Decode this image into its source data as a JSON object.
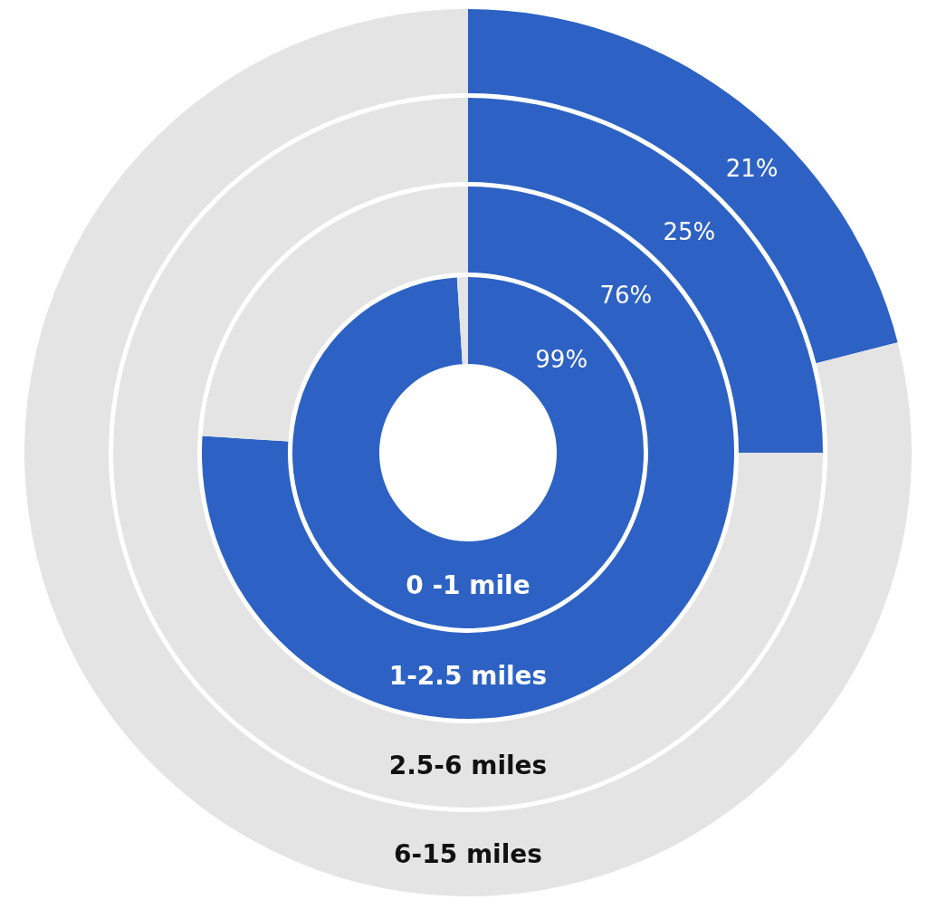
{
  "chart_data": {
    "type": "donut",
    "categories": [
      null,
      null
    ],
    "colors": [
      "#2d62c4",
      "#e4e4e4"
    ],
    "legend": false,
    "series": [
      {
        "name": "0 -1 mile",
        "values": [
          99,
          1
        ],
        "value_labels": [
          "99%",
          null
        ]
      },
      {
        "name": "1-2.5 miles",
        "values": [
          76,
          24
        ],
        "value_labels": [
          "76%",
          null
        ]
      },
      {
        "name": "2.5-6 miles",
        "values": [
          25,
          75
        ],
        "value_labels": [
          "25%",
          null
        ]
      },
      {
        "name": "6-15 miles",
        "values": [
          21,
          79
        ],
        "value_labels": [
          "21%",
          null
        ]
      }
    ]
  }
}
